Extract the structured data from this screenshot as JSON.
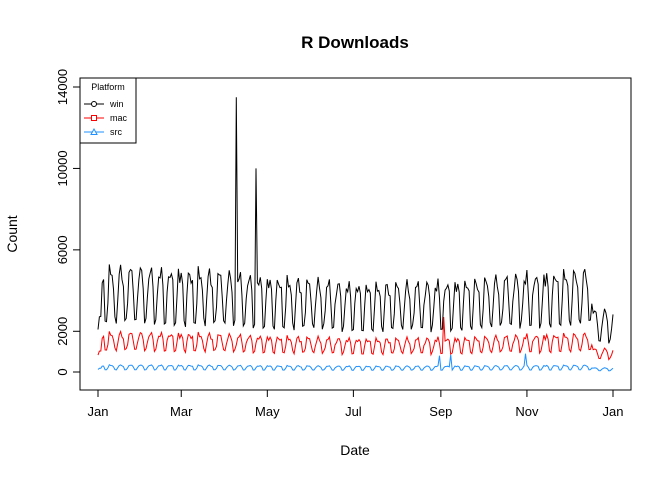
{
  "chart_data": {
    "type": "line",
    "title": "R Downloads",
    "xlabel": "Date",
    "ylabel": "Count",
    "ylim": [
      0,
      14000
    ],
    "xlim": [
      -6,
      371
    ],
    "yticks": [
      {
        "value": 0,
        "label": "0"
      },
      {
        "value": 2000,
        "label": "2000"
      },
      {
        "value": 6000,
        "label": "6000"
      },
      {
        "value": 10000,
        "label": "10000"
      },
      {
        "value": 14000,
        "label": "14000"
      }
    ],
    "xticks": [
      {
        "day": 0,
        "label": "Jan"
      },
      {
        "day": 59,
        "label": "Mar"
      },
      {
        "day": 120,
        "label": "May"
      },
      {
        "day": 181,
        "label": "Jul"
      },
      {
        "day": 243,
        "label": "Sep"
      },
      {
        "day": 304,
        "label": "Nov"
      },
      {
        "day": 365,
        "label": "Jan"
      }
    ],
    "legend": {
      "title": "Platform",
      "position": "top-left",
      "entries": [
        {
          "name": "win",
          "color": "#000000",
          "marker": "circle"
        },
        {
          "name": "mac",
          "color": "#ff0000",
          "marker": "square"
        },
        {
          "name": "src",
          "color": "#1e90ff",
          "marker": "triangle"
        }
      ]
    },
    "series": [
      {
        "name": "win",
        "color": "#000000",
        "weekday": 4500,
        "weekend": 2300,
        "spikes": [
          [
            98,
            13500
          ],
          [
            112,
            10000
          ]
        ]
      },
      {
        "name": "mac",
        "color": "#ff0000",
        "weekday": 1700,
        "weekend": 1000,
        "spikes": [
          [
            245,
            2700
          ]
        ]
      },
      {
        "name": "src",
        "color": "#1e90ff",
        "weekday": 300,
        "weekend": 100,
        "spikes": [
          [
            242,
            800
          ],
          [
            250,
            850
          ],
          [
            303,
            900
          ]
        ]
      }
    ]
  }
}
